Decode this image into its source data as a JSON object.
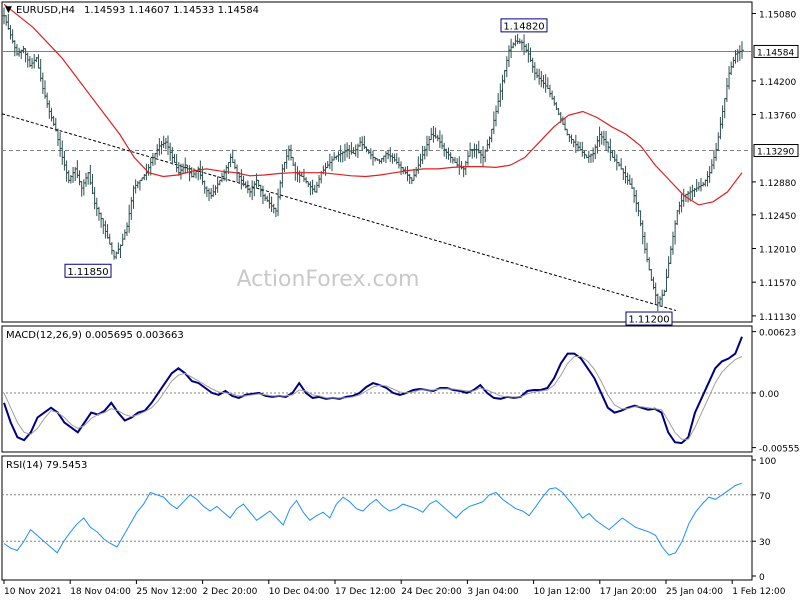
{
  "header": {
    "symbol": "EURUSD,H4",
    "ohlc": "1.14593 1.14607 1.14533 1.14584",
    "macd_label": "MACD(12,26,9) 0.005695 0.003663",
    "rsi_label": "RSI(14) 79.5453"
  },
  "watermark": "ActionForex.com",
  "colors": {
    "price_bars": "#2f4f4f",
    "moving_average": "#dd2222",
    "macd_line": "#000080",
    "signal_line": "#a0a0a0",
    "rsi_line": "#1e90ff",
    "grid_dashed": "#808080",
    "trendline": "#000000",
    "callout_border": "#000080"
  },
  "chart_data": [
    {
      "panel": "price",
      "type": "ohlc",
      "title": "EURUSD,H4",
      "y_axis_ticks": [
        "1.15080",
        "1.14200",
        "1.13760",
        "1.12880",
        "1.12450",
        "1.12010",
        "1.11570",
        "1.11130"
      ],
      "ylim": [
        1.1105,
        1.1523
      ],
      "x_labels": [
        "10 Nov 2021",
        "18 Nov 04:00",
        "25 Nov 12:00",
        "2 Dec 20:00",
        "10 Dec 04:00",
        "17 Dec 12:00",
        "24 Dec 20:00",
        "3 Jan 04:00",
        "10 Jan 12:00",
        "17 Jan 20:00",
        "25 Jan 04:00",
        "1 Feb 12:00"
      ],
      "close_path": [
        1.1505,
        1.148,
        1.1455,
        1.1462,
        1.144,
        1.145,
        1.141,
        1.138,
        1.1355,
        1.132,
        1.129,
        1.1305,
        1.128,
        1.13,
        1.126,
        1.124,
        1.1215,
        1.119,
        1.1205,
        1.123,
        1.128,
        1.129,
        1.13,
        1.132,
        1.1335,
        1.134,
        1.132,
        1.13,
        1.131,
        1.1295,
        1.1305,
        1.128,
        1.127,
        1.1285,
        1.13,
        1.132,
        1.13,
        1.1285,
        1.1275,
        1.129,
        1.127,
        1.126,
        1.125,
        1.1305,
        1.133,
        1.13,
        1.1295,
        1.1285,
        1.1275,
        1.13,
        1.131,
        1.132,
        1.1325,
        1.133,
        1.1325,
        1.134,
        1.133,
        1.132,
        1.1315,
        1.1325,
        1.132,
        1.131,
        1.13,
        1.129,
        1.131,
        1.133,
        1.135,
        1.1345,
        1.133,
        1.132,
        1.131,
        1.1305,
        1.133,
        1.133,
        1.132,
        1.1345,
        1.138,
        1.142,
        1.146,
        1.1472,
        1.147,
        1.1455,
        1.143,
        1.142,
        1.141,
        1.139,
        1.137,
        1.135,
        1.134,
        1.133,
        1.132,
        1.1325,
        1.135,
        1.134,
        1.132,
        1.131,
        1.1295,
        1.128,
        1.125,
        1.12,
        1.116,
        1.113,
        1.1145,
        1.12,
        1.125,
        1.127,
        1.1275,
        1.128,
        1.1285,
        1.13,
        1.133,
        1.138,
        1.143,
        1.1455,
        1.146
      ],
      "moving_average_path": [
        1.152,
        1.1505,
        1.149,
        1.147,
        1.145,
        1.1425,
        1.14,
        1.1375,
        1.135,
        1.132,
        1.13,
        1.1295,
        1.1297,
        1.1302,
        1.1305,
        1.1302,
        1.13,
        1.1296,
        1.1297,
        1.1299,
        1.13,
        1.13,
        1.13,
        1.1298,
        1.1296,
        1.1295,
        1.1297,
        1.13,
        1.1303,
        1.1305,
        1.1305,
        1.1307,
        1.1308,
        1.1308,
        1.1307,
        1.131,
        1.132,
        1.134,
        1.136,
        1.1375,
        1.138,
        1.1372,
        1.136,
        1.135,
        1.1335,
        1.131,
        1.129,
        1.127,
        1.1258,
        1.1262,
        1.1275,
        1.13
      ],
      "annotations": [
        {
          "label": "1.14820",
          "value": 1.1482
        },
        {
          "label": "1.11850",
          "value": 1.1185
        },
        {
          "label": "1.11200",
          "value": 1.112
        }
      ],
      "horizontal_levels": [
        {
          "label": "1.14584",
          "value": 1.14584,
          "style": "solid"
        },
        {
          "label": "1.13290",
          "value": 1.1329,
          "style": "dashed"
        }
      ],
      "trendline": {
        "from_value": 1.1377,
        "to_value": 1.112,
        "style": "dotted"
      }
    },
    {
      "panel": "macd",
      "type": "line",
      "title": "MACD(12,26,9) 0.005695 0.003663",
      "y_axis_ticks": [
        "0.00623",
        "0.00",
        "-0.005554"
      ],
      "ylim": [
        -0.006,
        0.0068
      ],
      "series": [
        {
          "name": "MACD",
          "values": [
            -0.001,
            -0.003,
            -0.0045,
            -0.0048,
            -0.004,
            -0.0025,
            -0.002,
            -0.0015,
            -0.002,
            -0.003,
            -0.0035,
            -0.004,
            -0.003,
            -0.002,
            -0.0022,
            -0.0018,
            -0.001,
            -0.002,
            -0.0028,
            -0.0025,
            -0.002,
            -0.0018,
            -0.001,
            0.0,
            0.001,
            0.002,
            0.0025,
            0.002,
            0.0012,
            0.001,
            0.0005,
            0.0,
            -0.0002,
            0.0002,
            -0.0003,
            -0.0005,
            -0.0002,
            -0.0001,
            0.0,
            -0.0003,
            -0.0004,
            -0.0003,
            -0.0004,
            0.0,
            0.001,
            0.0,
            -0.0005,
            -0.0004,
            -0.0006,
            -0.0005,
            -0.0006,
            -0.0004,
            -0.0003,
            0.0,
            0.0006,
            0.001,
            0.0008,
            0.0005,
            0.0,
            -0.0002,
            0.0,
            0.0003,
            0.0004,
            0.0003,
            0.0002,
            0.0005,
            0.0005,
            0.0003,
            0.0002,
            0.0,
            0.0003,
            0.0008,
            0.0,
            -0.0005,
            -0.0006,
            -0.0004,
            -0.0005,
            -0.0004,
            0.0002,
            0.0003,
            0.0003,
            0.0005,
            0.0015,
            0.003,
            0.004,
            0.004,
            0.0035,
            0.0025,
            0.0015,
            0.0,
            -0.0015,
            -0.002,
            -0.0018,
            -0.0015,
            -0.0013,
            -0.0015,
            -0.0017,
            -0.0016,
            -0.002,
            -0.004,
            -0.005,
            -0.0051,
            -0.0045,
            -0.002,
            -0.0005,
            0.001,
            0.0025,
            0.0032,
            0.0035,
            0.004,
            0.0057
          ]
        },
        {
          "name": "Signal",
          "values": [
            0.0,
            -0.0015,
            -0.003,
            -0.004,
            -0.0042,
            -0.0036,
            -0.0026,
            -0.0018,
            -0.002,
            -0.0025,
            -0.0032,
            -0.0036,
            -0.0033,
            -0.0026,
            -0.0022,
            -0.002,
            -0.0016,
            -0.0018,
            -0.0022,
            -0.0024,
            -0.0022,
            -0.0019,
            -0.0015,
            -0.0008,
            0.0002,
            0.0012,
            0.0018,
            0.002,
            0.0016,
            0.0012,
            0.0008,
            0.0004,
            0.0001,
            0.0,
            -0.0001,
            -0.0003,
            -0.0003,
            -0.0002,
            -0.0001,
            -0.0002,
            -0.0003,
            -0.0003,
            -0.0003,
            -0.0002,
            0.0003,
            0.0002,
            -0.0002,
            -0.0003,
            -0.0005,
            -0.0005,
            -0.0005,
            -0.0005,
            -0.0004,
            -0.0002,
            0.0002,
            0.0006,
            0.0008,
            0.0007,
            0.0004,
            0.0001,
            0.0,
            0.0001,
            0.0003,
            0.0003,
            0.0003,
            0.0004,
            0.0004,
            0.0004,
            0.0003,
            0.0002,
            0.0002,
            0.0005,
            0.0003,
            0.0,
            -0.0003,
            -0.0004,
            -0.0004,
            -0.0004,
            -0.0001,
            0.0001,
            0.0002,
            0.0003,
            0.0008,
            0.0018,
            0.003,
            0.0037,
            0.0037,
            0.0032,
            0.0024,
            0.0012,
            -0.0002,
            -0.0012,
            -0.0016,
            -0.0016,
            -0.0014,
            -0.0014,
            -0.0015,
            -0.0016,
            -0.0017,
            -0.0028,
            -0.004,
            -0.0047,
            -0.0047,
            -0.0035,
            -0.002,
            -0.0005,
            0.001,
            0.0021,
            0.0028,
            0.0034,
            0.0037
          ]
        }
      ]
    },
    {
      "panel": "rsi",
      "type": "line",
      "title": "RSI(14) 79.5453",
      "y_axis_ticks": [
        "100",
        "70",
        "30",
        "0"
      ],
      "ylim": [
        0,
        100
      ],
      "levels": [
        70,
        30
      ],
      "series": [
        {
          "name": "RSI",
          "values": [
            28,
            24,
            22,
            30,
            40,
            35,
            30,
            25,
            20,
            30,
            38,
            45,
            50,
            42,
            38,
            32,
            28,
            25,
            35,
            45,
            55,
            62,
            72,
            70,
            68,
            62,
            58,
            64,
            70,
            66,
            60,
            56,
            60,
            55,
            50,
            58,
            62,
            55,
            48,
            52,
            56,
            50,
            44,
            58,
            65,
            55,
            48,
            52,
            55,
            50,
            62,
            68,
            64,
            58,
            56,
            62,
            66,
            60,
            56,
            58,
            62,
            60,
            58,
            55,
            62,
            65,
            60,
            55,
            50,
            56,
            60,
            62,
            64,
            70,
            72,
            66,
            62,
            58,
            56,
            52,
            60,
            68,
            75,
            76,
            72,
            65,
            58,
            50,
            54,
            48,
            44,
            40,
            45,
            50,
            46,
            42,
            40,
            38,
            35,
            25,
            18,
            20,
            30,
            45,
            55,
            62,
            68,
            66,
            70,
            74,
            78,
            80
          ]
        }
      ]
    }
  ]
}
